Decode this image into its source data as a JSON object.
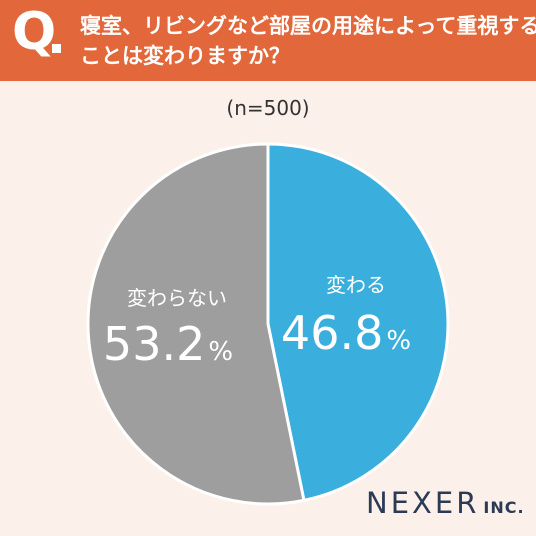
{
  "header": {
    "q_mark": "Q",
    "question_line1": "寝室、リビングなど部屋の用途によって重視する",
    "question_line2": "ことは変わりますか？"
  },
  "sample_label": "(n=500)",
  "chart_data": {
    "type": "pie",
    "slices": [
      {
        "label": "変わる",
        "value": 46.8,
        "display": "46.8",
        "unit": "%",
        "color": "#3AAEDC"
      },
      {
        "label": "変わらない",
        "value": 53.2,
        "display": "53.2",
        "unit": "%",
        "color": "#9E9E9E"
      }
    ],
    "start": "12 o'clock",
    "direction": "clockwise",
    "separator_color": "#FFFFFF",
    "label_color": "#FFFFFF",
    "legend": "none"
  },
  "brand": {
    "name": "NEXER",
    "suffix": "INC.",
    "color": "#2B3A55"
  },
  "colors": {
    "header_bg": "#E2673A",
    "page_bg": "#FCF1EA"
  }
}
